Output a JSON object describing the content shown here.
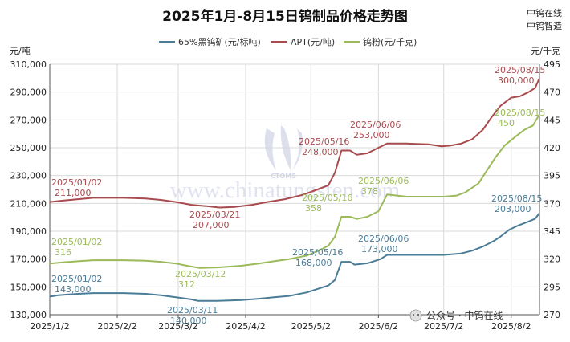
{
  "chart_data": {
    "type": "line",
    "title": "2025年1月-8月15日钨制品价格走势图",
    "left_axis": {
      "unit": "元/吨",
      "ticks": [
        "130,000",
        "150,000",
        "170,000",
        "190,000",
        "210,000",
        "230,000",
        "250,000",
        "270,000",
        "290,000",
        "310,000"
      ],
      "ylim": [
        130000,
        310000
      ]
    },
    "right_axis": {
      "unit": "元/千克",
      "ticks": [
        "270",
        "295",
        "320",
        "345",
        "370",
        "395",
        "420",
        "445",
        "470",
        "495"
      ],
      "ylim": [
        270,
        495
      ]
    },
    "x_axis": {
      "ticks": [
        "2025/1/2",
        "2025/2/2",
        "2025/3/2",
        "2025/4/2",
        "2025/5/2",
        "2025/6/2",
        "2025/7/2",
        "2025/8/2"
      ],
      "tick_dates": [
        "2025-01-02",
        "2025-02-02",
        "2025-03-02",
        "2025-04-02",
        "2025-05-02",
        "2025-06-02",
        "2025-07-02",
        "2025-08-02"
      ],
      "range": [
        "2025-01-02",
        "2025-08-15"
      ]
    },
    "legend_placement": "top",
    "series": [
      {
        "name": "65%黑钨矿(元/标吨)",
        "axis": "left",
        "color": "#4a7c98",
        "points": [
          [
            "2025-01-02",
            143000
          ],
          [
            "2025-01-06",
            144000
          ],
          [
            "2025-01-10",
            144500
          ],
          [
            "2025-01-15",
            145000
          ],
          [
            "2025-01-22",
            145500
          ],
          [
            "2025-02-05",
            145500
          ],
          [
            "2025-02-15",
            145000
          ],
          [
            "2025-02-22",
            144000
          ],
          [
            "2025-03-01",
            142500
          ],
          [
            "2025-03-08",
            141000
          ],
          [
            "2025-03-11",
            140000
          ],
          [
            "2025-03-20",
            140000
          ],
          [
            "2025-03-31",
            140500
          ],
          [
            "2025-04-08",
            141500
          ],
          [
            "2025-04-15",
            142500
          ],
          [
            "2025-04-22",
            143500
          ],
          [
            "2025-04-30",
            146000
          ],
          [
            "2025-05-06",
            149000
          ],
          [
            "2025-05-10",
            151000
          ],
          [
            "2025-05-13",
            155000
          ],
          [
            "2025-05-16",
            168000
          ],
          [
            "2025-05-20",
            168000
          ],
          [
            "2025-05-22",
            166000
          ],
          [
            "2025-05-28",
            167000
          ],
          [
            "2025-06-03",
            170000
          ],
          [
            "2025-06-06",
            173000
          ],
          [
            "2025-06-15",
            173000
          ],
          [
            "2025-06-25",
            173000
          ],
          [
            "2025-07-02",
            173000
          ],
          [
            "2025-07-10",
            174000
          ],
          [
            "2025-07-15",
            176000
          ],
          [
            "2025-07-20",
            179000
          ],
          [
            "2025-07-25",
            183000
          ],
          [
            "2025-07-28",
            186000
          ],
          [
            "2025-08-01",
            191000
          ],
          [
            "2025-08-05",
            194000
          ],
          [
            "2025-08-10",
            197000
          ],
          [
            "2025-08-13",
            199000
          ],
          [
            "2025-08-15",
            203000
          ]
        ]
      },
      {
        "name": "APT(元/吨)",
        "axis": "left",
        "color": "#a84b4f",
        "points": [
          [
            "2025-01-02",
            211000
          ],
          [
            "2025-01-08",
            212000
          ],
          [
            "2025-01-15",
            213000
          ],
          [
            "2025-01-22",
            214000
          ],
          [
            "2025-02-05",
            214000
          ],
          [
            "2025-02-15",
            213500
          ],
          [
            "2025-02-22",
            212500
          ],
          [
            "2025-03-01",
            211000
          ],
          [
            "2025-03-08",
            209000
          ],
          [
            "2025-03-15",
            208000
          ],
          [
            "2025-03-21",
            207000
          ],
          [
            "2025-03-28",
            207500
          ],
          [
            "2025-04-05",
            209000
          ],
          [
            "2025-04-12",
            211000
          ],
          [
            "2025-04-20",
            213000
          ],
          [
            "2025-04-28",
            216000
          ],
          [
            "2025-05-05",
            220000
          ],
          [
            "2025-05-10",
            223000
          ],
          [
            "2025-05-13",
            232000
          ],
          [
            "2025-05-16",
            248000
          ],
          [
            "2025-05-20",
            248000
          ],
          [
            "2025-05-23",
            245000
          ],
          [
            "2025-05-28",
            246000
          ],
          [
            "2025-06-02",
            250000
          ],
          [
            "2025-06-06",
            253000
          ],
          [
            "2025-06-15",
            253000
          ],
          [
            "2025-06-25",
            252500
          ],
          [
            "2025-07-01",
            251000
          ],
          [
            "2025-07-05",
            251500
          ],
          [
            "2025-07-10",
            253000
          ],
          [
            "2025-07-15",
            256000
          ],
          [
            "2025-07-20",
            263000
          ],
          [
            "2025-07-24",
            272000
          ],
          [
            "2025-07-28",
            280000
          ],
          [
            "2025-08-02",
            286000
          ],
          [
            "2025-08-06",
            287000
          ],
          [
            "2025-08-10",
            290000
          ],
          [
            "2025-08-13",
            293000
          ],
          [
            "2025-08-15",
            300000
          ]
        ]
      },
      {
        "name": "钨粉(元/千克)",
        "axis": "right",
        "color": "#9bba59",
        "points": [
          [
            "2025-01-02",
            316
          ],
          [
            "2025-01-08",
            317
          ],
          [
            "2025-01-15",
            318
          ],
          [
            "2025-01-22",
            319
          ],
          [
            "2025-02-05",
            319
          ],
          [
            "2025-02-15",
            318.5
          ],
          [
            "2025-02-22",
            317.5
          ],
          [
            "2025-03-01",
            316
          ],
          [
            "2025-03-06",
            314
          ],
          [
            "2025-03-12",
            312
          ],
          [
            "2025-03-20",
            312.5
          ],
          [
            "2025-03-31",
            314
          ],
          [
            "2025-04-08",
            316
          ],
          [
            "2025-04-15",
            318
          ],
          [
            "2025-04-22",
            320
          ],
          [
            "2025-04-30",
            323
          ],
          [
            "2025-05-06",
            328
          ],
          [
            "2025-05-10",
            332
          ],
          [
            "2025-05-13",
            340
          ],
          [
            "2025-05-16",
            358
          ],
          [
            "2025-05-20",
            358
          ],
          [
            "2025-05-23",
            356
          ],
          [
            "2025-05-28",
            358
          ],
          [
            "2025-06-02",
            363
          ],
          [
            "2025-06-06",
            378
          ],
          [
            "2025-06-15",
            376
          ],
          [
            "2025-06-25",
            376
          ],
          [
            "2025-07-02",
            376
          ],
          [
            "2025-07-08",
            377
          ],
          [
            "2025-07-12",
            380
          ],
          [
            "2025-07-18",
            388
          ],
          [
            "2025-07-22",
            400
          ],
          [
            "2025-07-26",
            412
          ],
          [
            "2025-07-30",
            422
          ],
          [
            "2025-08-04",
            430
          ],
          [
            "2025-08-08",
            436
          ],
          [
            "2025-08-12",
            440
          ],
          [
            "2025-08-15",
            450
          ]
        ]
      }
    ],
    "annotations": [
      {
        "series": 1,
        "date": "2025/01/02",
        "value": "211,000",
        "at": "2025-01-02"
      },
      {
        "series": 1,
        "date": "2025/03/21",
        "value": "207,000",
        "at": "2025-03-21"
      },
      {
        "series": 1,
        "date": "2025/05/16",
        "value": "248,000",
        "at": "2025-05-16"
      },
      {
        "series": 1,
        "date": "2025/06/06",
        "value": "253,000",
        "at": "2025-06-06"
      },
      {
        "series": 1,
        "date": "2025/08/15",
        "value": "300,000",
        "at": "2025-08-15"
      },
      {
        "series": 2,
        "date": "2025/01/02",
        "value": "316",
        "at": "2025-01-02"
      },
      {
        "series": 2,
        "date": "2025/03/12",
        "value": "312",
        "at": "2025-03-12"
      },
      {
        "series": 2,
        "date": "2025/05/16",
        "value": "358",
        "at": "2025-05-16"
      },
      {
        "series": 2,
        "date": "2025/06/06",
        "value": "378",
        "at": "2025-06-06"
      },
      {
        "series": 2,
        "date": "2025/08/15",
        "value": "450",
        "at": "2025-08-15"
      },
      {
        "series": 0,
        "date": "2025/01/02",
        "value": "143,000",
        "at": "2025-01-02"
      },
      {
        "series": 0,
        "date": "2025/03/11",
        "value": "140,000",
        "at": "2025-03-11"
      },
      {
        "series": 0,
        "date": "2025/05/16",
        "value": "168,000",
        "at": "2025-05-16"
      },
      {
        "series": 0,
        "date": "2025/06/06",
        "value": "173,000",
        "at": "2025-06-06"
      },
      {
        "series": 0,
        "date": "2025/08/15",
        "value": "203,000",
        "at": "2025-08-15"
      }
    ]
  },
  "branding": {
    "top_right_1": "中钨在线",
    "top_right_2": "中钨智造",
    "watermark_text": "www.chinatungsten.com",
    "logo_text": "CTOMS",
    "footer": "公众号 · 中钨在线"
  }
}
